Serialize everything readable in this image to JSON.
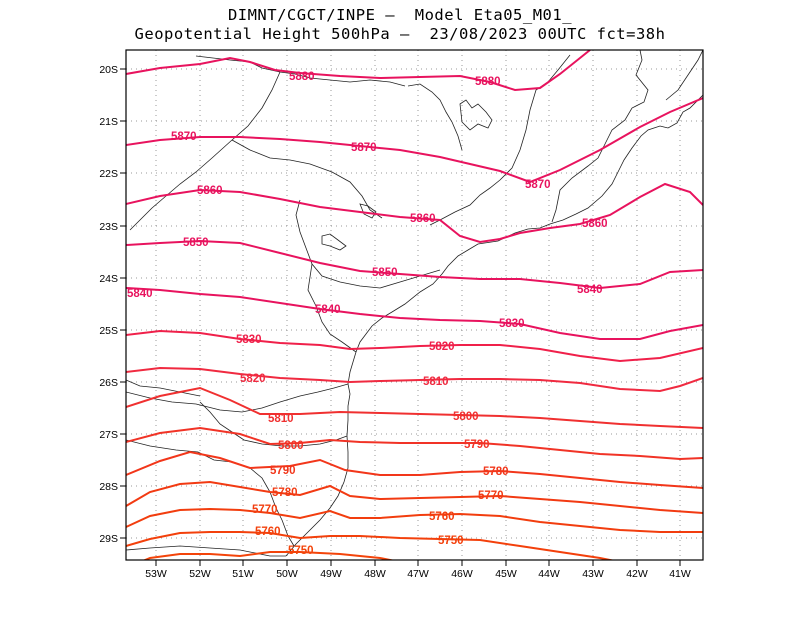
{
  "title": {
    "line1": "DIMNT/CGCT/INPE –  Model Eta05_M01_",
    "line2": "Geopotential Height 500hPa –  23/08/2023 00UTC fct=38h"
  },
  "map": {
    "lon_labels": [
      "53W",
      "52W",
      "51W",
      "50W",
      "49W",
      "48W",
      "47W",
      "46W",
      "45W",
      "44W",
      "43W",
      "42W",
      "41W"
    ],
    "lat_labels": [
      "20S",
      "21S",
      "22S",
      "23S",
      "24S",
      "25S",
      "26S",
      "27S",
      "28S",
      "29S"
    ],
    "contour_labels": [
      "5880",
      "5880",
      "5870",
      "5870",
      "5870",
      "5860",
      "5860",
      "5860",
      "5850",
      "5850",
      "5840",
      "5840",
      "5840",
      "5830",
      "5830",
      "5820",
      "5820",
      "5810",
      "5810",
      "5800",
      "5800",
      "5790",
      "5790",
      "5780",
      "5780",
      "5770",
      "5770",
      "5760",
      "5760",
      "5750"
    ],
    "colors": {
      "high": "#e8135e",
      "low": "#f23a0a"
    }
  }
}
